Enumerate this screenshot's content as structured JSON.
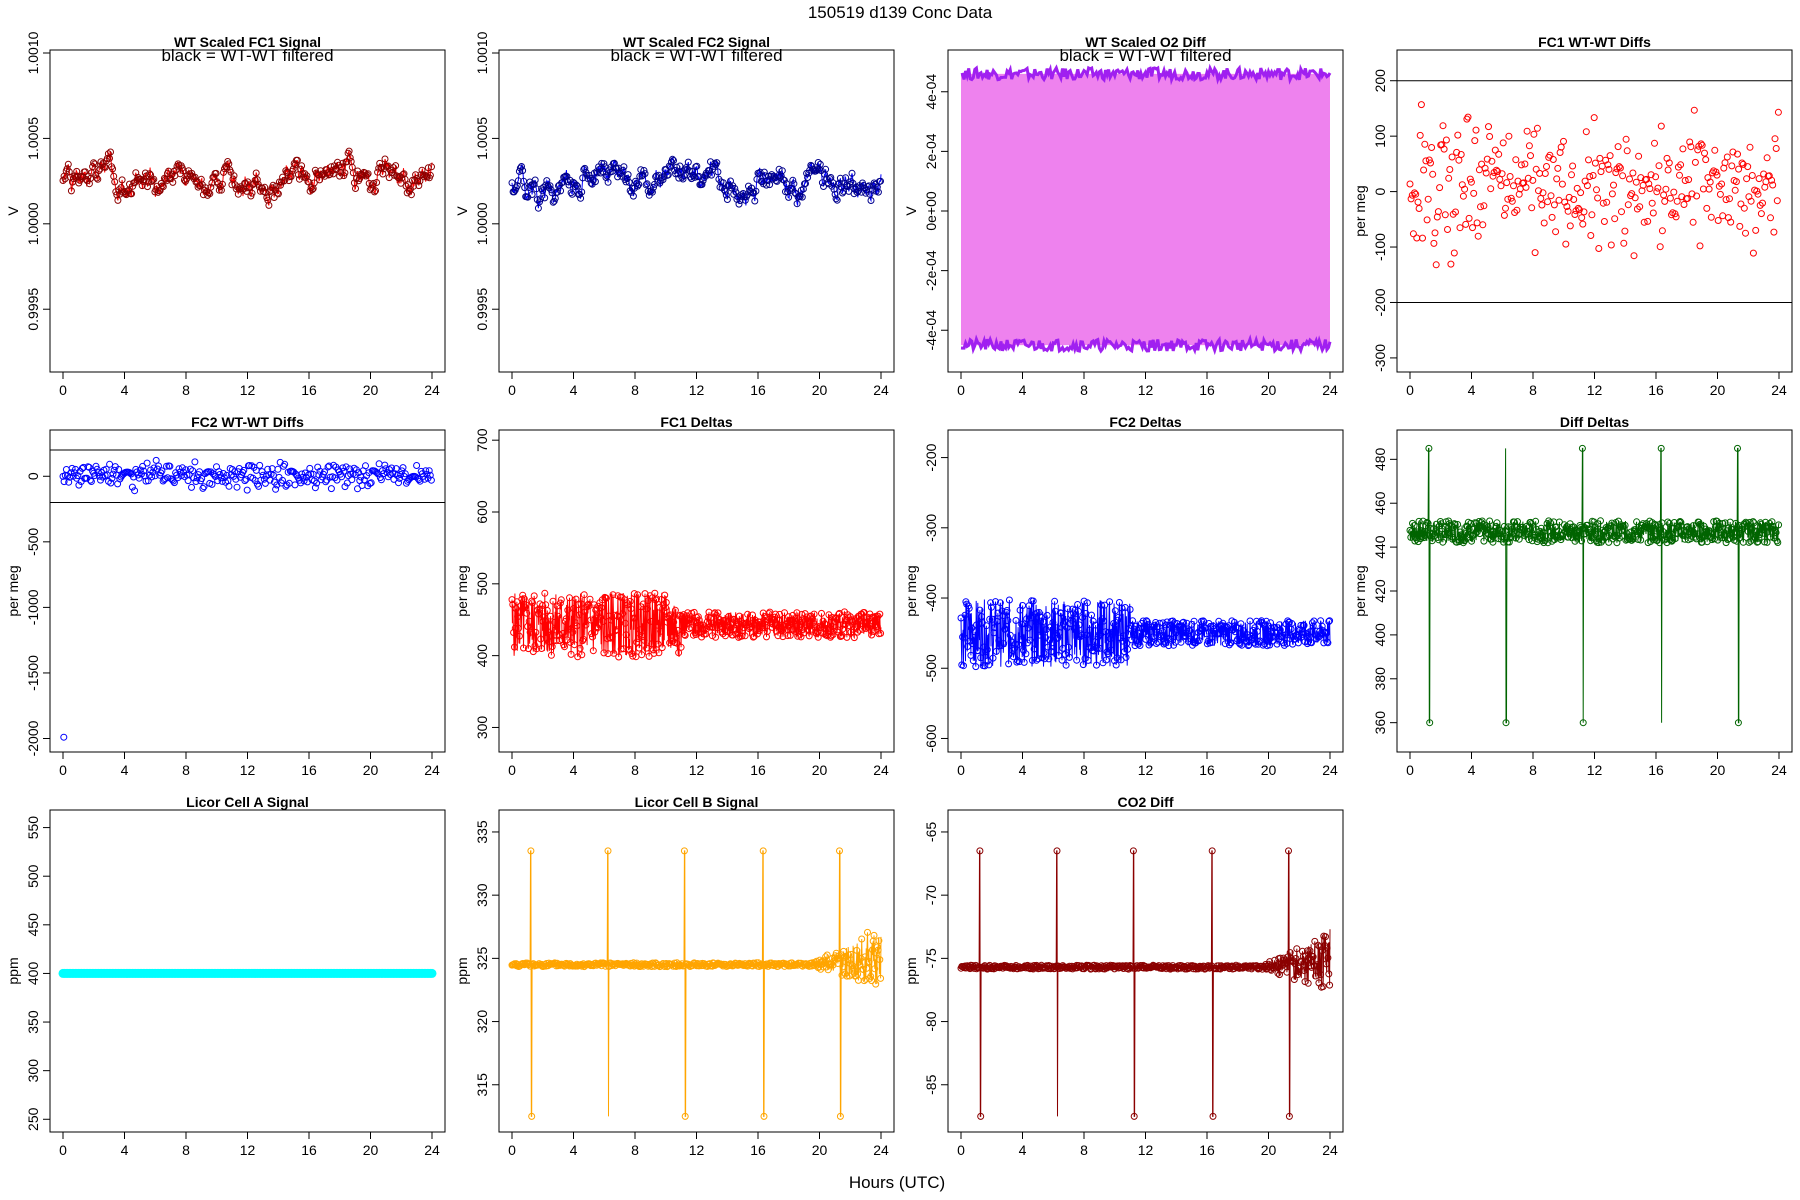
{
  "figure": {
    "title": "150519   d139   Conc Data",
    "xlabel": "Hours (UTC)"
  },
  "chart_data": [
    {
      "id": "fc1_signal",
      "type": "line",
      "title": "WT Scaled FC1 Signal",
      "annotation": "black = WT-WT filtered",
      "ylabel": "V",
      "xlim": [
        0,
        24
      ],
      "ylim": [
        0.99915,
        1.001
      ],
      "xticks": [
        0,
        4,
        8,
        12,
        16,
        20,
        24
      ],
      "yticks": [
        0.9995,
        1.0,
        1.0005,
        1.001
      ],
      "ytick_labels": [
        "0.9995",
        "1.0000",
        "1.0005",
        "1.0010"
      ],
      "color": "#ff0000",
      "marker_color": "#8b0000",
      "series": [
        {
          "kind": "noise",
          "base": 1.00025,
          "amp": 0.00018,
          "n": 700,
          "seed": 1
        }
      ]
    },
    {
      "id": "fc2_signal",
      "type": "line",
      "title": "WT Scaled FC2 Signal",
      "annotation": "black = WT-WT filtered",
      "ylabel": "V",
      "xlim": [
        0,
        24
      ],
      "ylim": [
        0.99915,
        1.001
      ],
      "xticks": [
        0,
        4,
        8,
        12,
        16,
        20,
        24
      ],
      "yticks": [
        0.9995,
        1.0,
        1.0005,
        1.001
      ],
      "ytick_labels": [
        "0.9995",
        "1.0000",
        "1.0005",
        "1.0010"
      ],
      "color": "#0000ff",
      "marker_color": "#00008b",
      "series": [
        {
          "kind": "noise",
          "base": 1.00025,
          "amp": 0.00018,
          "n": 700,
          "seed": 2
        }
      ]
    },
    {
      "id": "o2_diff",
      "type": "line",
      "title": "WT Scaled O2 Diff",
      "annotation": "black = WT-WT filtered",
      "ylabel": "V",
      "xlim": [
        0,
        24
      ],
      "ylim": [
        -0.00053,
        0.00053
      ],
      "xticks": [
        0,
        4,
        8,
        12,
        16,
        20,
        24
      ],
      "yticks": [
        -0.0004,
        -0.0002,
        0,
        0.0002,
        0.0004
      ],
      "ytick_labels": [
        "-4e-04",
        "-2e-04",
        "0e+00",
        "2e-04",
        "4e-04"
      ],
      "color": "#ee82ee",
      "marker_color": "#a020f0",
      "series": [
        {
          "kind": "band",
          "upper": 0.00046,
          "lower": -0.00045
        }
      ]
    },
    {
      "id": "fc1_wtwt",
      "type": "scatter",
      "title": "FC1 WT-WT Diffs",
      "ylabel": "per meg",
      "xlim": [
        0,
        24
      ],
      "ylim": [
        -320,
        250
      ],
      "xticks": [
        0,
        4,
        8,
        12,
        16,
        20,
        24
      ],
      "yticks": [
        -300,
        -200,
        -100,
        0,
        100,
        200
      ],
      "ytick_labels": [
        "-300",
        "-200",
        "-100",
        "0",
        "100",
        "200"
      ],
      "hlines": [
        200,
        -200
      ],
      "color": "#ff0000",
      "series": [
        {
          "kind": "scatter",
          "base": 10,
          "amp": 110,
          "n": 650,
          "seed": 3
        }
      ]
    },
    {
      "id": "fc2_wtwt",
      "type": "scatter",
      "title": "FC2 WT-WT Diffs",
      "ylabel": "per meg",
      "xlim": [
        0,
        24
      ],
      "ylim": [
        -2080,
        330
      ],
      "xticks": [
        0,
        4,
        8,
        12,
        16,
        20,
        24
      ],
      "yticks": [
        -2000,
        -1500,
        -1000,
        -500,
        0
      ],
      "ytick_labels": [
        "-2000",
        "-1500",
        "-1000",
        "-500",
        "0"
      ],
      "hlines": [
        200,
        -200
      ],
      "color": "#0000ff",
      "series": [
        {
          "kind": "scatter",
          "base": 10,
          "amp": 90,
          "n": 650,
          "seed": 4,
          "outlier": [
            0.05,
            -1990
          ]
        }
      ]
    },
    {
      "id": "fc1_deltas",
      "type": "line",
      "title": "FC1 Deltas",
      "ylabel": "per meg",
      "xlim": [
        0,
        24
      ],
      "ylim": [
        270,
        710
      ],
      "xticks": [
        0,
        4,
        8,
        12,
        16,
        20,
        24
      ],
      "yticks": [
        300,
        400,
        500,
        600,
        700
      ],
      "ytick_labels": [
        "300",
        "400",
        "500",
        "600",
        "700"
      ],
      "color": "#ff0000",
      "series": [
        {
          "kind": "noisy",
          "base": 443,
          "amp": 45,
          "ampLate": 18,
          "n": 900,
          "seed": 5
        }
      ]
    },
    {
      "id": "fc2_deltas",
      "type": "line",
      "title": "FC2 Deltas",
      "ylabel": "per meg",
      "xlim": [
        0,
        24
      ],
      "ylim": [
        -615,
        -165
      ],
      "xticks": [
        0,
        4,
        8,
        12,
        16,
        20,
        24
      ],
      "yticks": [
        -600,
        -500,
        -400,
        -300,
        -200
      ],
      "ytick_labels": [
        "-600",
        "-500",
        "-400",
        "-300",
        "-200"
      ],
      "color": "#0000ff",
      "series": [
        {
          "kind": "noisy",
          "base": -450,
          "amp": 48,
          "ampLate": 18,
          "n": 900,
          "seed": 6
        }
      ]
    },
    {
      "id": "diff_deltas",
      "type": "line",
      "title": "Diff Deltas",
      "ylabel": "per meg",
      "xlim": [
        0,
        24
      ],
      "ylim": [
        348,
        492
      ],
      "xticks": [
        0,
        4,
        8,
        12,
        16,
        20,
        24
      ],
      "yticks": [
        360,
        380,
        400,
        420,
        440,
        460,
        480
      ],
      "ytick_labels": [
        "360",
        "380",
        "400",
        "420",
        "440",
        "460",
        "480"
      ],
      "color": "#006400",
      "series": [
        {
          "kind": "spiky",
          "base": 447,
          "amp": 5,
          "n": 900,
          "seed": 7,
          "spikes": [
            1.2,
            6.2,
            11.2,
            16.3,
            21.3
          ],
          "spike_hi": 485,
          "spike_lo": 360
        }
      ]
    },
    {
      "id": "licor_a",
      "type": "line",
      "title": "Licor Cell A Signal",
      "ylabel": "ppm",
      "xlim": [
        0,
        24
      ],
      "ylim": [
        240,
        565
      ],
      "xticks": [
        0,
        4,
        8,
        12,
        16,
        20,
        24
      ],
      "yticks": [
        250,
        300,
        350,
        400,
        450,
        500,
        550
      ],
      "ytick_labels": [
        "250",
        "300",
        "350",
        "400",
        "450",
        "500",
        "550"
      ],
      "color": "#00ffff",
      "series": [
        {
          "kind": "flat",
          "value": 400
        }
      ]
    },
    {
      "id": "licor_b",
      "type": "line",
      "title": "Licor Cell B Signal",
      "ylabel": "ppm",
      "xlim": [
        0,
        24
      ],
      "ylim": [
        311.5,
        336.5
      ],
      "xticks": [
        0,
        4,
        8,
        12,
        16,
        20,
        24
      ],
      "yticks": [
        315,
        320,
        325,
        330,
        335
      ],
      "ytick_labels": [
        "315",
        "320",
        "325",
        "330",
        "335"
      ],
      "color": "#ffa500",
      "series": [
        {
          "kind": "calib",
          "base": 324.5,
          "amp": 0.15,
          "spikes": [
            1.2,
            6.2,
            11.2,
            16.3,
            21.3
          ],
          "hi": 333.5,
          "lo": 312.5,
          "late_noise": 2.5,
          "seed": 8
        }
      ]
    },
    {
      "id": "co2_diff",
      "type": "line",
      "title": "CO2 Diff",
      "ylabel": "ppm",
      "xlim": [
        0,
        24
      ],
      "ylim": [
        -88.5,
        -63.5
      ],
      "xticks": [
        0,
        4,
        8,
        12,
        16,
        20,
        24
      ],
      "yticks": [
        -85,
        -80,
        -75,
        -70,
        -65
      ],
      "ytick_labels": [
        "-85",
        "-80",
        "-75",
        "-70",
        "-65"
      ],
      "color": "#8b0000",
      "series": [
        {
          "kind": "calib",
          "base": -75.7,
          "amp": 0.15,
          "spikes": [
            1.2,
            6.2,
            11.2,
            16.3,
            21.3
          ],
          "hi": -66.5,
          "lo": -87.5,
          "late_noise": 2.5,
          "seed": 9
        }
      ]
    }
  ]
}
